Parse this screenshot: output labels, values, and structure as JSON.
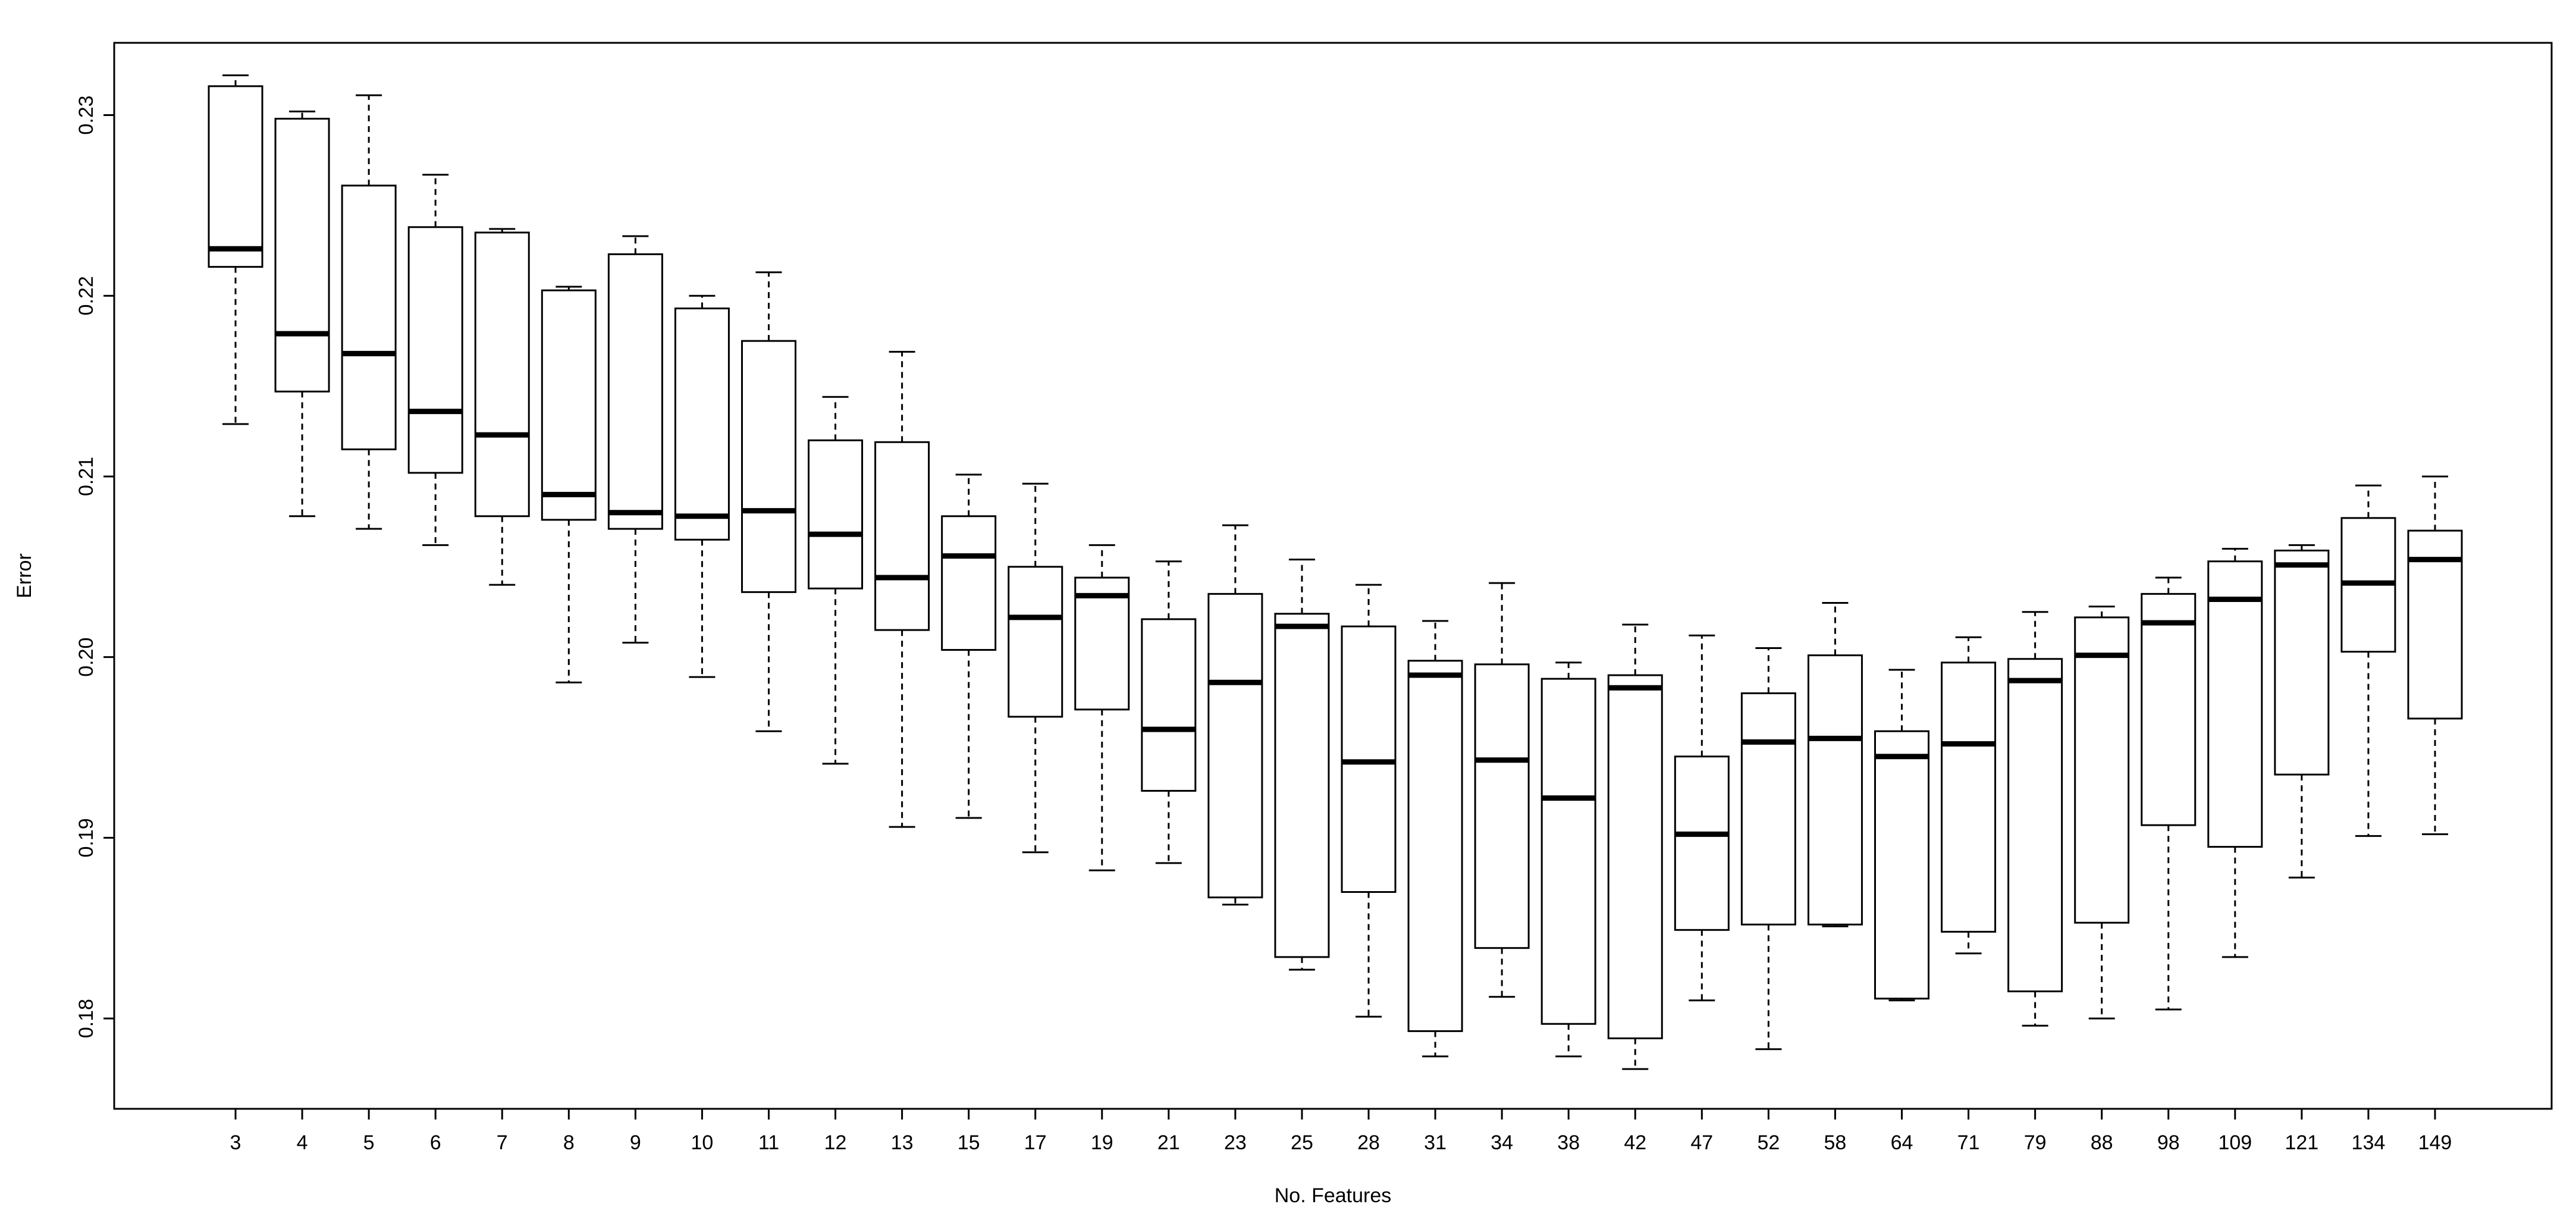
{
  "chart_data": {
    "type": "box",
    "xlabel": "No. Features",
    "ylabel": "Error",
    "ylim": [
      0.175,
      0.234
    ],
    "yticks": [
      0.18,
      0.19,
      0.2,
      0.21,
      0.22,
      0.23
    ],
    "ytick_labels": [
      "0.18",
      "0.19",
      "0.20",
      "0.21",
      "0.22",
      "0.23"
    ],
    "grid": false,
    "categories": [
      "3",
      "4",
      "5",
      "6",
      "7",
      "8",
      "9",
      "10",
      "11",
      "12",
      "13",
      "15",
      "17",
      "19",
      "21",
      "23",
      "25",
      "28",
      "31",
      "34",
      "38",
      "42",
      "47",
      "52",
      "58",
      "64",
      "71",
      "79",
      "88",
      "98",
      "109",
      "121",
      "134",
      "149"
    ],
    "boxes": [
      {
        "lower_whisker": 0.2129,
        "q1": 0.2216,
        "median": 0.2226,
        "q3": 0.2316,
        "upper_whisker": 0.2322
      },
      {
        "lower_whisker": 0.2078,
        "q1": 0.2147,
        "median": 0.2179,
        "q3": 0.2298,
        "upper_whisker": 0.2302
      },
      {
        "lower_whisker": 0.2071,
        "q1": 0.2115,
        "median": 0.2168,
        "q3": 0.2261,
        "upper_whisker": 0.2311
      },
      {
        "lower_whisker": 0.2062,
        "q1": 0.2102,
        "median": 0.2136,
        "q3": 0.2238,
        "upper_whisker": 0.2267
      },
      {
        "lower_whisker": 0.204,
        "q1": 0.2078,
        "median": 0.2123,
        "q3": 0.2235,
        "upper_whisker": 0.2237
      },
      {
        "lower_whisker": 0.1986,
        "q1": 0.2076,
        "median": 0.209,
        "q3": 0.2203,
        "upper_whisker": 0.2205
      },
      {
        "lower_whisker": 0.2008,
        "q1": 0.2071,
        "median": 0.208,
        "q3": 0.2223,
        "upper_whisker": 0.2233
      },
      {
        "lower_whisker": 0.1989,
        "q1": 0.2065,
        "median": 0.2078,
        "q3": 0.2193,
        "upper_whisker": 0.22
      },
      {
        "lower_whisker": 0.1959,
        "q1": 0.2036,
        "median": 0.2081,
        "q3": 0.2175,
        "upper_whisker": 0.2213
      },
      {
        "lower_whisker": 0.1941,
        "q1": 0.2038,
        "median": 0.2068,
        "q3": 0.212,
        "upper_whisker": 0.2144
      },
      {
        "lower_whisker": 0.1906,
        "q1": 0.2015,
        "median": 0.2044,
        "q3": 0.2119,
        "upper_whisker": 0.2169
      },
      {
        "lower_whisker": 0.1911,
        "q1": 0.2004,
        "median": 0.2056,
        "q3": 0.2078,
        "upper_whisker": 0.2101
      },
      {
        "lower_whisker": 0.1892,
        "q1": 0.1967,
        "median": 0.2022,
        "q3": 0.205,
        "upper_whisker": 0.2096
      },
      {
        "lower_whisker": 0.1882,
        "q1": 0.1971,
        "median": 0.2034,
        "q3": 0.2044,
        "upper_whisker": 0.2062
      },
      {
        "lower_whisker": 0.1886,
        "q1": 0.1926,
        "median": 0.196,
        "q3": 0.2021,
        "upper_whisker": 0.2053
      },
      {
        "lower_whisker": 0.1863,
        "q1": 0.1867,
        "median": 0.1986,
        "q3": 0.2035,
        "upper_whisker": 0.2073
      },
      {
        "lower_whisker": 0.1827,
        "q1": 0.1834,
        "median": 0.2017,
        "q3": 0.2024,
        "upper_whisker": 0.2054
      },
      {
        "lower_whisker": 0.1801,
        "q1": 0.187,
        "median": 0.1942,
        "q3": 0.2017,
        "upper_whisker": 0.204
      },
      {
        "lower_whisker": 0.1779,
        "q1": 0.1793,
        "median": 0.199,
        "q3": 0.1998,
        "upper_whisker": 0.202
      },
      {
        "lower_whisker": 0.1812,
        "q1": 0.1839,
        "median": 0.1943,
        "q3": 0.1996,
        "upper_whisker": 0.2041
      },
      {
        "lower_whisker": 0.1779,
        "q1": 0.1797,
        "median": 0.1922,
        "q3": 0.1988,
        "upper_whisker": 0.1997
      },
      {
        "lower_whisker": 0.1772,
        "q1": 0.1789,
        "median": 0.1983,
        "q3": 0.199,
        "upper_whisker": 0.2018
      },
      {
        "lower_whisker": 0.181,
        "q1": 0.1849,
        "median": 0.1902,
        "q3": 0.1945,
        "upper_whisker": 0.2012
      },
      {
        "lower_whisker": 0.1783,
        "q1": 0.1852,
        "median": 0.1953,
        "q3": 0.198,
        "upper_whisker": 0.2005
      },
      {
        "lower_whisker": 0.1851,
        "q1": 0.1852,
        "median": 0.1955,
        "q3": 0.2001,
        "upper_whisker": 0.203
      },
      {
        "lower_whisker": 0.181,
        "q1": 0.1811,
        "median": 0.1945,
        "q3": 0.1959,
        "upper_whisker": 0.1993
      },
      {
        "lower_whisker": 0.1836,
        "q1": 0.1848,
        "median": 0.1952,
        "q3": 0.1997,
        "upper_whisker": 0.2011
      },
      {
        "lower_whisker": 0.1796,
        "q1": 0.1815,
        "median": 0.1987,
        "q3": 0.1999,
        "upper_whisker": 0.2025
      },
      {
        "lower_whisker": 0.18,
        "q1": 0.1853,
        "median": 0.2001,
        "q3": 0.2022,
        "upper_whisker": 0.2028
      },
      {
        "lower_whisker": 0.1805,
        "q1": 0.1907,
        "median": 0.2019,
        "q3": 0.2035,
        "upper_whisker": 0.2044
      },
      {
        "lower_whisker": 0.1834,
        "q1": 0.1895,
        "median": 0.2032,
        "q3": 0.2053,
        "upper_whisker": 0.206
      },
      {
        "lower_whisker": 0.1878,
        "q1": 0.1935,
        "median": 0.2051,
        "q3": 0.2059,
        "upper_whisker": 0.2062
      },
      {
        "lower_whisker": 0.1901,
        "q1": 0.2003,
        "median": 0.2041,
        "q3": 0.2077,
        "upper_whisker": 0.2095
      },
      {
        "lower_whisker": 0.1902,
        "q1": 0.1966,
        "median": 0.2054,
        "q3": 0.207,
        "upper_whisker": 0.21
      }
    ]
  }
}
